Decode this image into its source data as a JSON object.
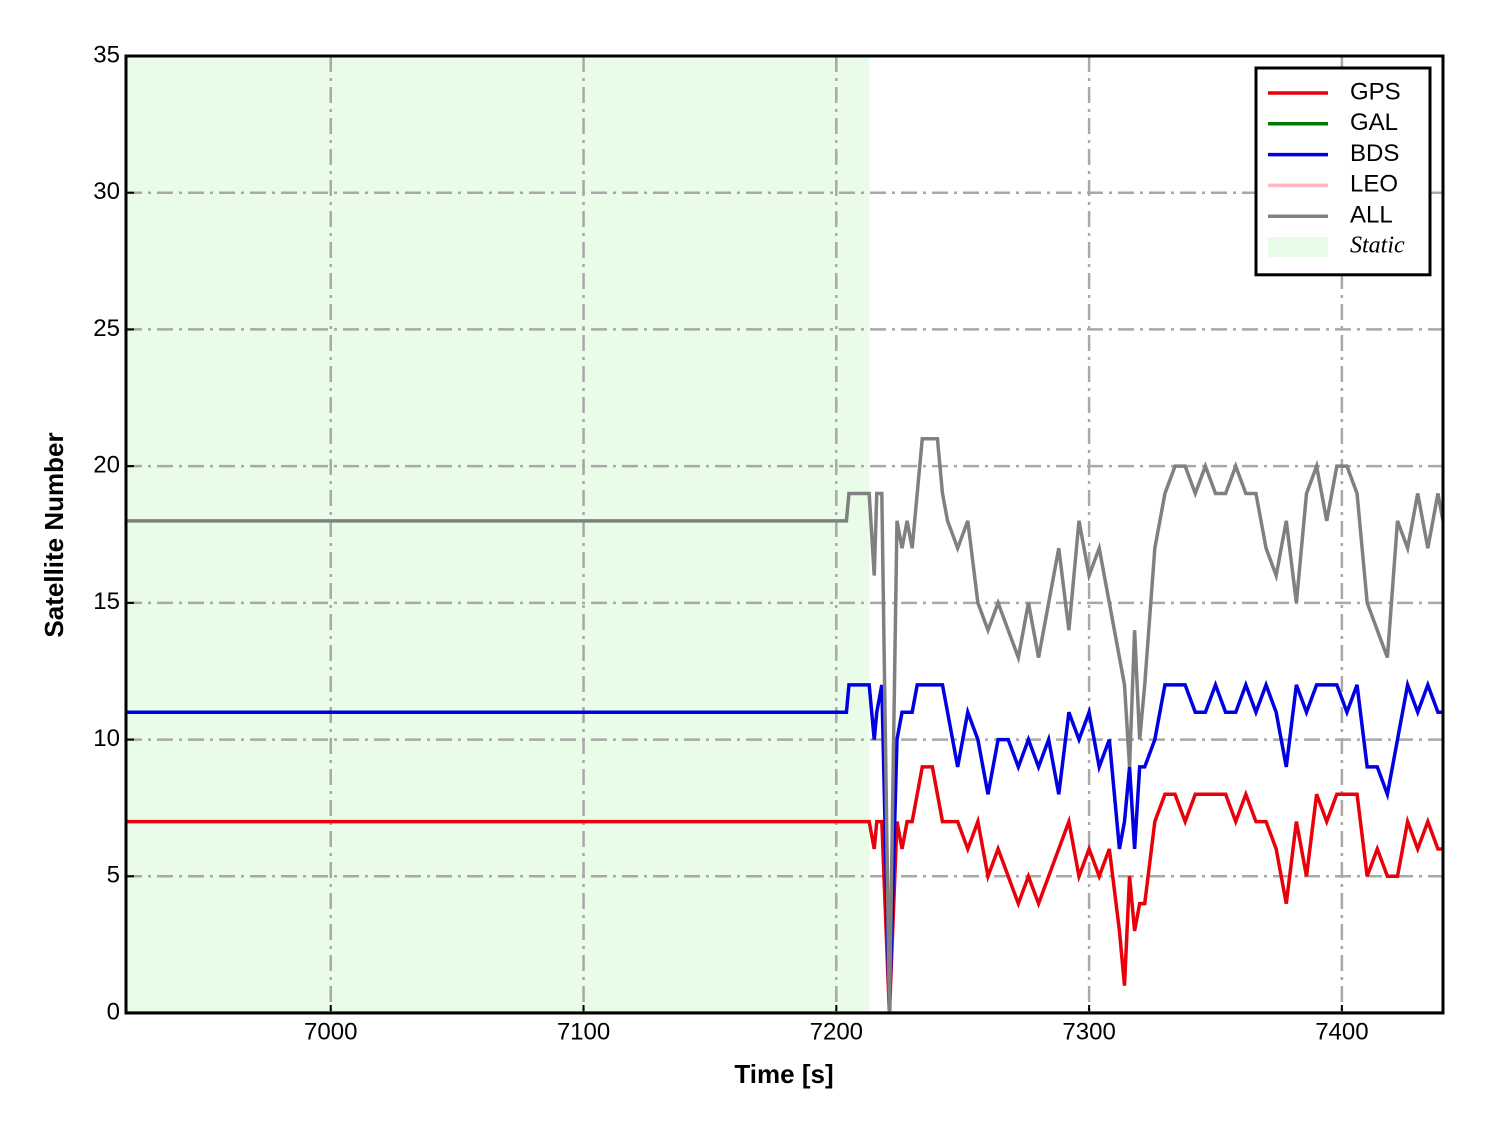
{
  "chart_data": {
    "type": "line",
    "xlabel": "Time [s]",
    "ylabel": "Satellite Number",
    "xlim": [
      6919,
      7440
    ],
    "ylim": [
      0,
      35
    ],
    "xticks": [
      7000,
      7100,
      7200,
      7300,
      7400
    ],
    "yticks": [
      0,
      5,
      10,
      15,
      20,
      25,
      30,
      35
    ],
    "grid": true,
    "legend": "upper right",
    "spans": [
      {
        "label": "Static",
        "start": 6919,
        "end": 7213,
        "color": "#e8fce8"
      }
    ],
    "x": [
      6919,
      7204,
      7205,
      7213,
      7215,
      7216,
      7218,
      7221,
      7224,
      7226,
      7228,
      7230,
      7232,
      7234,
      7238,
      7240,
      7242,
      7244,
      7248,
      7252,
      7256,
      7260,
      7264,
      7268,
      7272,
      7276,
      7280,
      7284,
      7288,
      7292,
      7296,
      7300,
      7304,
      7308,
      7312,
      7314,
      7316,
      7318,
      7320,
      7322,
      7326,
      7330,
      7334,
      7338,
      7342,
      7346,
      7350,
      7354,
      7358,
      7362,
      7366,
      7370,
      7374,
      7378,
      7382,
      7386,
      7390,
      7394,
      7398,
      7402,
      7406,
      7410,
      7414,
      7418,
      7422,
      7426,
      7430,
      7434,
      7438,
      7440
    ],
    "series": [
      {
        "name": "GPS",
        "color": "#e8000b",
        "values": [
          7,
          7,
          7,
          7,
          6,
          7,
          7,
          0,
          7,
          6,
          7,
          7,
          8,
          9,
          9,
          8,
          7,
          7,
          7,
          6,
          7,
          5,
          6,
          5,
          4,
          5,
          4,
          5,
          6,
          7,
          5,
          6,
          5,
          6,
          3,
          1,
          5,
          3,
          4,
          4,
          7,
          8,
          8,
          7,
          8,
          8,
          8,
          8,
          7,
          8,
          7,
          7,
          6,
          4,
          7,
          5,
          8,
          7,
          8,
          8,
          8,
          5,
          6,
          5,
          5,
          7,
          6,
          7,
          6,
          6
        ]
      },
      {
        "name": "GAL",
        "color": "#007a00",
        "values": [
          0,
          0,
          0,
          0,
          0,
          0,
          0,
          0,
          0,
          0,
          0,
          0,
          0,
          0,
          0,
          0,
          0,
          0,
          0,
          0,
          0,
          0,
          0,
          0,
          0,
          0,
          0,
          0,
          0,
          0,
          0,
          0,
          0,
          0,
          0,
          0,
          0,
          0,
          0,
          0,
          0,
          0,
          0,
          0,
          0,
          0,
          0,
          0,
          0,
          0,
          0,
          0,
          0,
          0,
          0,
          0,
          0,
          0,
          0,
          0,
          0,
          0,
          0,
          0,
          0,
          0,
          0,
          0,
          0,
          0
        ]
      },
      {
        "name": "BDS",
        "color": "#0000e0",
        "values": [
          11,
          11,
          12,
          12,
          10,
          11,
          12,
          0,
          10,
          11,
          11,
          11,
          12,
          12,
          12,
          12,
          12,
          11,
          9,
          11,
          10,
          8,
          10,
          10,
          9,
          10,
          9,
          10,
          8,
          11,
          10,
          11,
          9,
          10,
          6,
          7,
          9,
          6,
          9,
          9,
          10,
          12,
          12,
          12,
          11,
          11,
          12,
          11,
          11,
          12,
          11,
          12,
          11,
          9,
          12,
          11,
          12,
          12,
          12,
          11,
          12,
          9,
          9,
          8,
          10,
          12,
          11,
          12,
          11,
          11
        ]
      },
      {
        "name": "LEO",
        "color": "#ffb6c1",
        "values": [
          0,
          0,
          0,
          0,
          0,
          0,
          0,
          0,
          0,
          0,
          0,
          0,
          0,
          0,
          0,
          0,
          0,
          0,
          0,
          0,
          0,
          0,
          0,
          0,
          0,
          0,
          0,
          0,
          0,
          0,
          0,
          0,
          0,
          0,
          0,
          0,
          0,
          0,
          0,
          0,
          0,
          0,
          0,
          0,
          0,
          0,
          0,
          0,
          0,
          0,
          0,
          0,
          0,
          0,
          0,
          0,
          0,
          0,
          0,
          0,
          0,
          0,
          0,
          0,
          0,
          0,
          0,
          0,
          0,
          0
        ]
      },
      {
        "name": "ALL",
        "color": "#808080",
        "values": [
          18,
          18,
          19,
          19,
          16,
          19,
          19,
          0,
          18,
          17,
          18,
          17,
          19,
          21,
          21,
          21,
          19,
          18,
          17,
          18,
          15,
          14,
          15,
          14,
          13,
          15,
          13,
          15,
          17,
          14,
          18,
          16,
          17,
          15,
          13,
          12,
          9,
          14,
          10,
          12,
          17,
          19,
          20,
          20,
          19,
          20,
          19,
          19,
          20,
          19,
          19,
          17,
          16,
          18,
          15,
          19,
          20,
          18,
          20,
          20,
          19,
          15,
          14,
          13,
          18,
          17,
          19,
          17,
          19,
          18
        ]
      }
    ]
  }
}
